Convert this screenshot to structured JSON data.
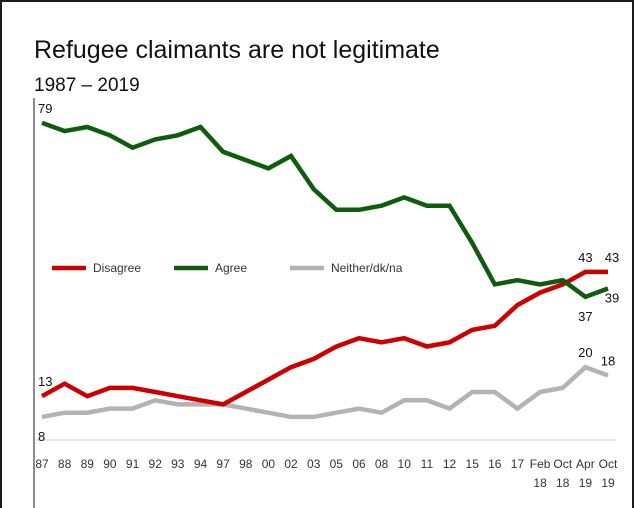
{
  "chart_data": {
    "type": "line",
    "title": "Refugee claimants are not legitimate",
    "subtitle": "1987 – 2019",
    "x_labels": [
      [
        "87"
      ],
      [
        "88"
      ],
      [
        "89"
      ],
      [
        "90"
      ],
      [
        "91"
      ],
      [
        "92"
      ],
      [
        "93"
      ],
      [
        "94"
      ],
      [
        "97"
      ],
      [
        "98"
      ],
      [
        "00"
      ],
      [
        "02"
      ],
      [
        "03"
      ],
      [
        "05"
      ],
      [
        "06"
      ],
      [
        "08"
      ],
      [
        "10"
      ],
      [
        "11"
      ],
      [
        "12"
      ],
      [
        "15"
      ],
      [
        "16"
      ],
      [
        "17"
      ],
      [
        "Feb",
        "18"
      ],
      [
        "Oct",
        "18"
      ],
      [
        "Apr",
        "19"
      ],
      [
        "Oct",
        "19"
      ]
    ],
    "ylim": [
      0,
      85
    ],
    "grid": false,
    "legend_placement": "middle-left",
    "series": [
      {
        "name": "Disagree",
        "color": "#cc0000",
        "values": [
          13,
          16,
          13,
          15,
          15,
          14,
          13,
          12,
          11,
          14,
          17,
          20,
          22,
          25,
          27,
          26,
          27,
          25,
          26,
          29,
          30,
          35,
          38,
          40,
          43,
          43
        ]
      },
      {
        "name": "Agree",
        "color": "#0f5c0f",
        "values": [
          79,
          77,
          78,
          76,
          73,
          75,
          76,
          78,
          72,
          70,
          68,
          71,
          63,
          58,
          58,
          59,
          61,
          59,
          59,
          50,
          40,
          41,
          40,
          41,
          37,
          39
        ]
      },
      {
        "name": "Neither/dk/na",
        "color": "#b3b3b3",
        "values": [
          8,
          9,
          9,
          10,
          10,
          12,
          11,
          11,
          11,
          10,
          9,
          8,
          8,
          9,
          10,
          9,
          12,
          12,
          10,
          14,
          14,
          10,
          14,
          15,
          20,
          18
        ]
      }
    ],
    "data_labels": [
      {
        "series": 0,
        "index": 0,
        "text": "13"
      },
      {
        "series": 1,
        "index": 0,
        "text": "79"
      },
      {
        "series": 2,
        "index": 0,
        "text": "8"
      },
      {
        "series": 0,
        "index": 24,
        "text": "43"
      },
      {
        "series": 0,
        "index": 25,
        "text": "43"
      },
      {
        "series": 1,
        "index": 24,
        "text": "37"
      },
      {
        "series": 1,
        "index": 25,
        "text": "39"
      },
      {
        "series": 2,
        "index": 24,
        "text": "20"
      },
      {
        "series": 2,
        "index": 25,
        "text": "18"
      }
    ]
  }
}
